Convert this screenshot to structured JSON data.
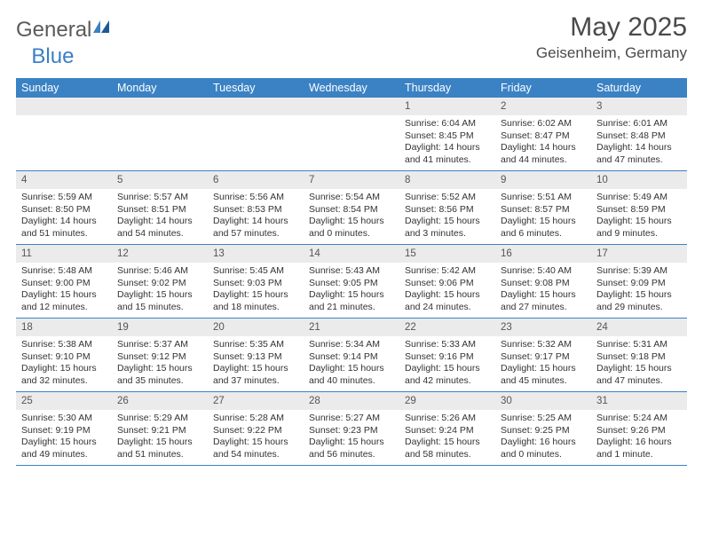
{
  "brand": {
    "part1": "General",
    "part2": "Blue"
  },
  "title": "May 2025",
  "location": "Geisenheim, Germany",
  "colors": {
    "header_bg": "#3b82c4",
    "header_text": "#ffffff",
    "daynum_bg": "#ebebeb",
    "border": "#3b82c4",
    "text": "#333333",
    "logo_gray": "#5a5a5a",
    "logo_blue": "#3b7fc4",
    "page_bg": "#ffffff"
  },
  "weekdays": [
    "Sunday",
    "Monday",
    "Tuesday",
    "Wednesday",
    "Thursday",
    "Friday",
    "Saturday"
  ],
  "weeks": [
    [
      null,
      null,
      null,
      null,
      {
        "n": "1",
        "sr": "6:04 AM",
        "ss": "8:45 PM",
        "dl": "14 hours and 41 minutes."
      },
      {
        "n": "2",
        "sr": "6:02 AM",
        "ss": "8:47 PM",
        "dl": "14 hours and 44 minutes."
      },
      {
        "n": "3",
        "sr": "6:01 AM",
        "ss": "8:48 PM",
        "dl": "14 hours and 47 minutes."
      }
    ],
    [
      {
        "n": "4",
        "sr": "5:59 AM",
        "ss": "8:50 PM",
        "dl": "14 hours and 51 minutes."
      },
      {
        "n": "5",
        "sr": "5:57 AM",
        "ss": "8:51 PM",
        "dl": "14 hours and 54 minutes."
      },
      {
        "n": "6",
        "sr": "5:56 AM",
        "ss": "8:53 PM",
        "dl": "14 hours and 57 minutes."
      },
      {
        "n": "7",
        "sr": "5:54 AM",
        "ss": "8:54 PM",
        "dl": "15 hours and 0 minutes."
      },
      {
        "n": "8",
        "sr": "5:52 AM",
        "ss": "8:56 PM",
        "dl": "15 hours and 3 minutes."
      },
      {
        "n": "9",
        "sr": "5:51 AM",
        "ss": "8:57 PM",
        "dl": "15 hours and 6 minutes."
      },
      {
        "n": "10",
        "sr": "5:49 AM",
        "ss": "8:59 PM",
        "dl": "15 hours and 9 minutes."
      }
    ],
    [
      {
        "n": "11",
        "sr": "5:48 AM",
        "ss": "9:00 PM",
        "dl": "15 hours and 12 minutes."
      },
      {
        "n": "12",
        "sr": "5:46 AM",
        "ss": "9:02 PM",
        "dl": "15 hours and 15 minutes."
      },
      {
        "n": "13",
        "sr": "5:45 AM",
        "ss": "9:03 PM",
        "dl": "15 hours and 18 minutes."
      },
      {
        "n": "14",
        "sr": "5:43 AM",
        "ss": "9:05 PM",
        "dl": "15 hours and 21 minutes."
      },
      {
        "n": "15",
        "sr": "5:42 AM",
        "ss": "9:06 PM",
        "dl": "15 hours and 24 minutes."
      },
      {
        "n": "16",
        "sr": "5:40 AM",
        "ss": "9:08 PM",
        "dl": "15 hours and 27 minutes."
      },
      {
        "n": "17",
        "sr": "5:39 AM",
        "ss": "9:09 PM",
        "dl": "15 hours and 29 minutes."
      }
    ],
    [
      {
        "n": "18",
        "sr": "5:38 AM",
        "ss": "9:10 PM",
        "dl": "15 hours and 32 minutes."
      },
      {
        "n": "19",
        "sr": "5:37 AM",
        "ss": "9:12 PM",
        "dl": "15 hours and 35 minutes."
      },
      {
        "n": "20",
        "sr": "5:35 AM",
        "ss": "9:13 PM",
        "dl": "15 hours and 37 minutes."
      },
      {
        "n": "21",
        "sr": "5:34 AM",
        "ss": "9:14 PM",
        "dl": "15 hours and 40 minutes."
      },
      {
        "n": "22",
        "sr": "5:33 AM",
        "ss": "9:16 PM",
        "dl": "15 hours and 42 minutes."
      },
      {
        "n": "23",
        "sr": "5:32 AM",
        "ss": "9:17 PM",
        "dl": "15 hours and 45 minutes."
      },
      {
        "n": "24",
        "sr": "5:31 AM",
        "ss": "9:18 PM",
        "dl": "15 hours and 47 minutes."
      }
    ],
    [
      {
        "n": "25",
        "sr": "5:30 AM",
        "ss": "9:19 PM",
        "dl": "15 hours and 49 minutes."
      },
      {
        "n": "26",
        "sr": "5:29 AM",
        "ss": "9:21 PM",
        "dl": "15 hours and 51 minutes."
      },
      {
        "n": "27",
        "sr": "5:28 AM",
        "ss": "9:22 PM",
        "dl": "15 hours and 54 minutes."
      },
      {
        "n": "28",
        "sr": "5:27 AM",
        "ss": "9:23 PM",
        "dl": "15 hours and 56 minutes."
      },
      {
        "n": "29",
        "sr": "5:26 AM",
        "ss": "9:24 PM",
        "dl": "15 hours and 58 minutes."
      },
      {
        "n": "30",
        "sr": "5:25 AM",
        "ss": "9:25 PM",
        "dl": "16 hours and 0 minutes."
      },
      {
        "n": "31",
        "sr": "5:24 AM",
        "ss": "9:26 PM",
        "dl": "16 hours and 1 minute."
      }
    ]
  ],
  "labels": {
    "sunrise": "Sunrise: ",
    "sunset": "Sunset: ",
    "daylight": "Daylight: "
  }
}
